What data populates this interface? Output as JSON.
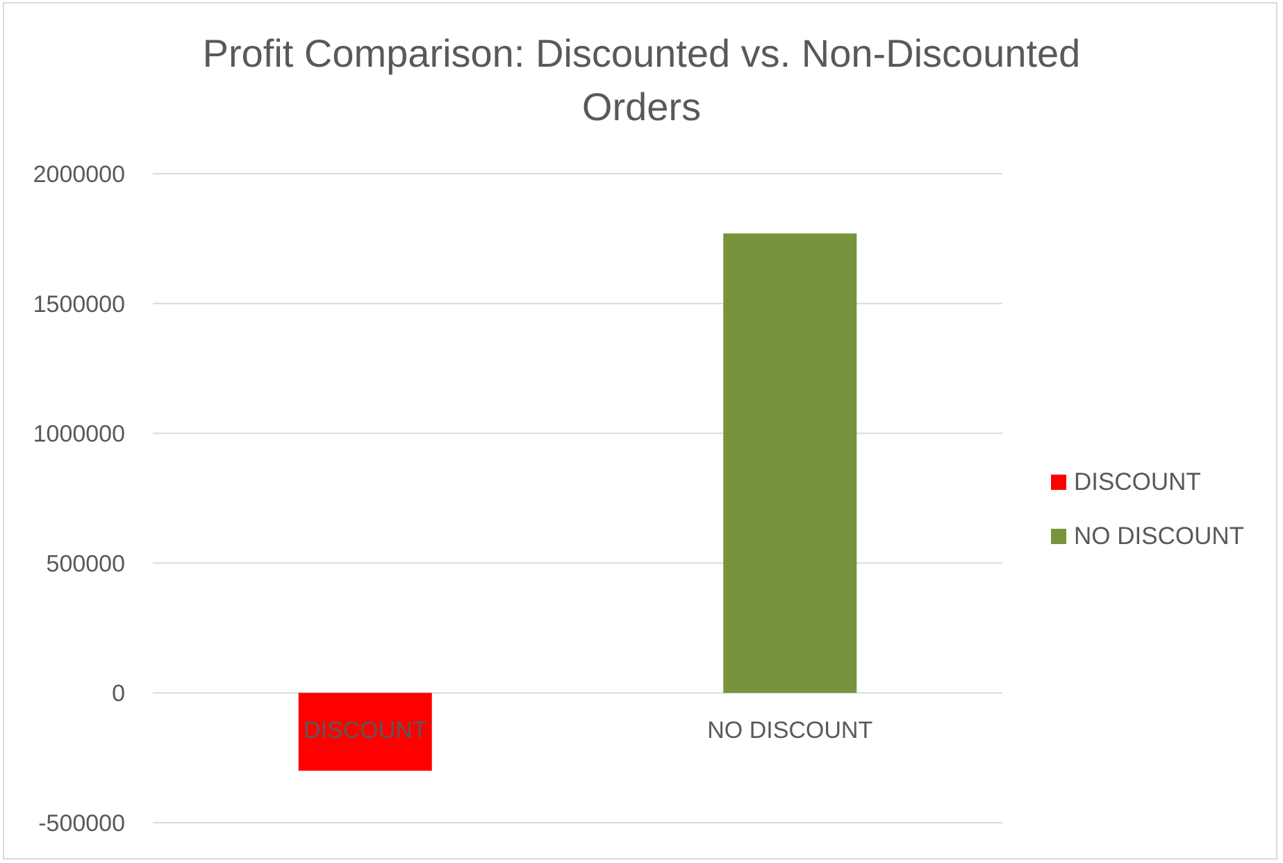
{
  "chart_data": {
    "type": "bar",
    "title": "Profit Comparison: Discounted vs. Non-Discounted Orders",
    "xlabel": "",
    "ylabel": "",
    "categories": [
      "DISCOUNT",
      "NO DISCOUNT"
    ],
    "values": [
      -300000,
      1770000
    ],
    "colors": [
      "#ff0000",
      "#77933c"
    ],
    "ylim": [
      -500000,
      2000000
    ],
    "yticks": [
      -500000,
      0,
      500000,
      1000000,
      1500000,
      2000000
    ],
    "grid": true,
    "legend": {
      "position": "right",
      "items": [
        {
          "label": "DISCOUNT",
          "color": "#ff0000"
        },
        {
          "label": "NO DISCOUNT",
          "color": "#77933c"
        }
      ]
    }
  }
}
